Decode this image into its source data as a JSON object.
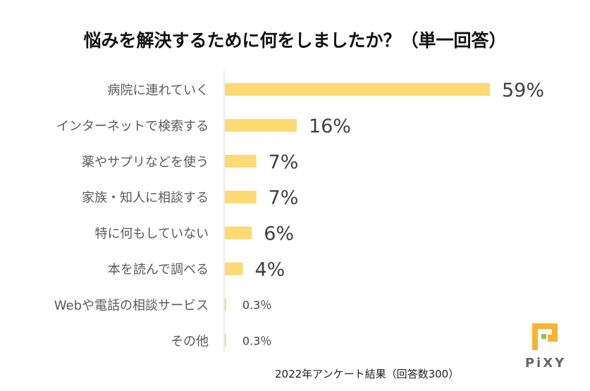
{
  "chart_data": {
    "type": "bar",
    "orientation": "horizontal",
    "title": "悩みを解決するために何をしましたか？（単一回答）",
    "categories": [
      "病院に連れていく",
      "インターネットで検索する",
      "薬やサプリなどを使う",
      "家族・知人に相談する",
      "特に何もしていない",
      "本を読んで調べる",
      "Webや電話の相談サービス",
      "その他"
    ],
    "values": [
      59,
      16,
      7,
      7,
      6,
      4,
      0.3,
      0.3
    ],
    "data_labels": [
      "59%",
      "16%",
      "7%",
      "7%",
      "6%",
      "4%",
      "0.3％",
      "0.3％"
    ],
    "xlim": [
      0,
      59
    ],
    "grid": false,
    "bar_color": "#FDDA72",
    "footnote": "2022年アンケート結果（回答数300）"
  },
  "logo": {
    "text": "PiXY",
    "colors": {
      "primary": "#F5B335",
      "accent": "#8DC63F",
      "text": "#666666"
    }
  }
}
